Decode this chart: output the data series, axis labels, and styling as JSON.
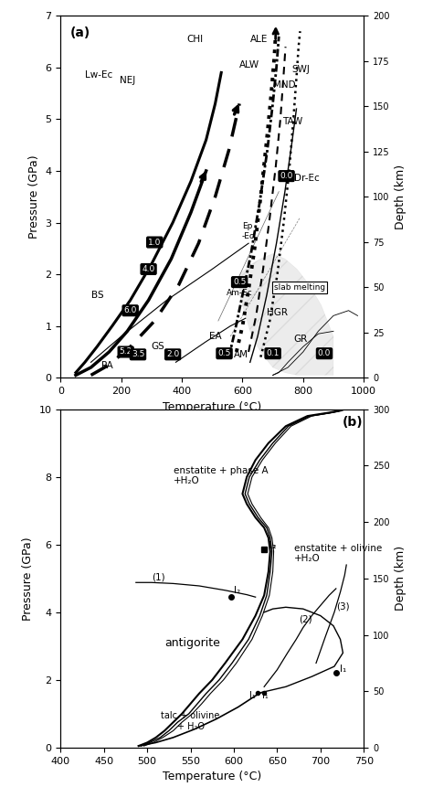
{
  "fig_width": 4.74,
  "fig_height": 8.61,
  "dpi": 100,
  "panel_a": {
    "xlim": [
      0,
      1000
    ],
    "ylim": [
      0,
      7
    ],
    "xlabel": "Temperature (°C)",
    "ylabel": "Pressure (GPa)",
    "ylabel2": "Depth (km)",
    "yticks2_labels": [
      "0",
      "25",
      "50",
      "75",
      "100",
      "125",
      "150",
      "175",
      "200"
    ],
    "yticks2_vals": [
      0,
      0.875,
      1.75,
      2.625,
      3.5,
      4.375,
      5.25,
      6.125,
      7.0
    ],
    "label": "(a)"
  },
  "panel_b": {
    "xlim": [
      400,
      750
    ],
    "ylim": [
      0,
      10
    ],
    "xlabel": "Temperature (°C)",
    "ylabel": "Pressure (GPa)",
    "ylabel2": "Depth (km)",
    "yticks2_labels": [
      "0",
      "50",
      "100",
      "150",
      "200",
      "250",
      "300"
    ],
    "yticks2_vals": [
      0,
      1.667,
      3.333,
      5.0,
      6.667,
      8.333,
      10.0
    ],
    "label": "(b)"
  }
}
